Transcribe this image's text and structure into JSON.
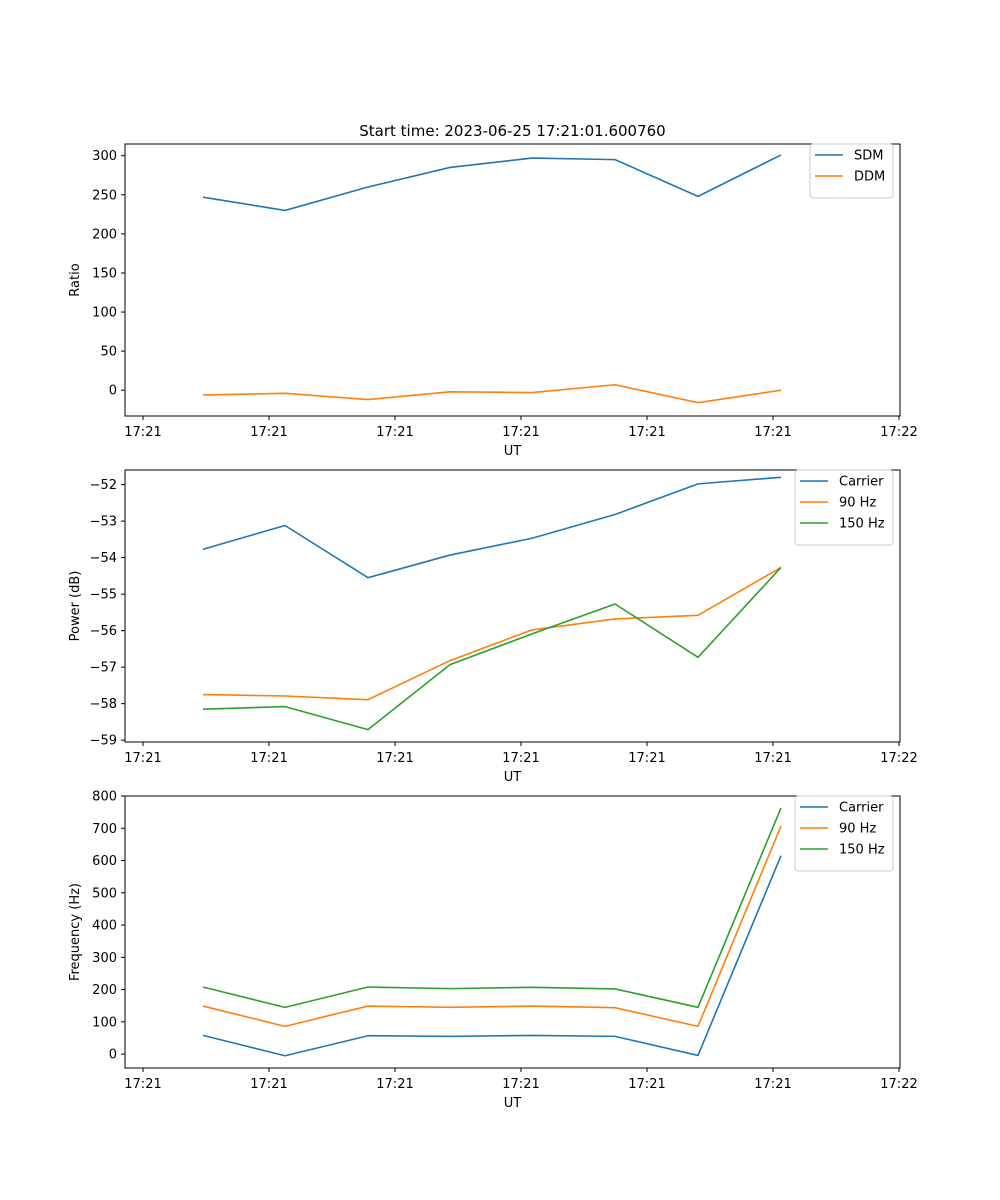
{
  "figure_title": "Start time: 2023-06-25 17:21:01.600760",
  "chart_data": [
    {
      "type": "line",
      "title": "Start time: 2023-06-25 17:21:01.600760",
      "xlabel": "UT",
      "ylabel": "Ratio",
      "x_tick_labels": [
        "17:21",
        "17:21",
        "17:21",
        "17:21",
        "17:21",
        "17:21",
        "17:22"
      ],
      "y_ticks": [
        0,
        50,
        100,
        150,
        200,
        250,
        300
      ],
      "ylim": [
        -33,
        315
      ],
      "legend_position": "top-right",
      "colors": [
        "#1f77b4",
        "#ff7f0e"
      ],
      "series": [
        {
          "name": "SDM",
          "values": [
            247,
            230,
            260,
            285,
            297,
            295,
            248,
            301
          ]
        },
        {
          "name": "DDM",
          "values": [
            -6,
            -4,
            -12,
            -2,
            -3,
            7,
            -16,
            0
          ]
        }
      ]
    },
    {
      "type": "line",
      "title": "",
      "xlabel": "UT",
      "ylabel": "Power (dB)",
      "x_tick_labels": [
        "17:21",
        "17:21",
        "17:21",
        "17:21",
        "17:21",
        "17:21",
        "17:22"
      ],
      "y_ticks": [
        -59,
        -58,
        -57,
        -56,
        -55,
        -54,
        -53,
        -52
      ],
      "ylim": [
        -59.05,
        -51.6
      ],
      "legend_position": "top-right",
      "colors": [
        "#1f77b4",
        "#ff7f0e",
        "#2ca02c"
      ],
      "series": [
        {
          "name": "Carrier",
          "values": [
            -53.77,
            -53.12,
            -54.55,
            -53.93,
            -53.47,
            -52.82,
            -51.98,
            -51.8
          ]
        },
        {
          "name": "90 Hz",
          "values": [
            -57.75,
            -57.79,
            -57.89,
            -56.82,
            -55.98,
            -55.68,
            -55.58,
            -54.27
          ]
        },
        {
          "name": "150 Hz",
          "values": [
            -58.15,
            -58.08,
            -58.71,
            -56.93,
            -56.09,
            -55.27,
            -56.73,
            -54.27
          ]
        }
      ]
    },
    {
      "type": "line",
      "title": "",
      "xlabel": "UT",
      "ylabel": "Frequency (Hz)",
      "x_tick_labels": [
        "17:21",
        "17:21",
        "17:21",
        "17:21",
        "17:21",
        "17:21",
        "17:22"
      ],
      "y_ticks": [
        0,
        100,
        200,
        300,
        400,
        500,
        600,
        700,
        800
      ],
      "ylim": [
        -43,
        800
      ],
      "legend_position": "top-right",
      "colors": [
        "#1f77b4",
        "#ff7f0e",
        "#2ca02c"
      ],
      "series": [
        {
          "name": "Carrier",
          "values": [
            58,
            -5,
            57,
            55,
            58,
            55,
            -4,
            615
          ]
        },
        {
          "name": "90 Hz",
          "values": [
            149,
            86,
            149,
            145,
            149,
            144,
            86,
            707
          ]
        },
        {
          "name": "150 Hz",
          "values": [
            208,
            145,
            208,
            203,
            207,
            202,
            145,
            763
          ]
        }
      ]
    }
  ]
}
